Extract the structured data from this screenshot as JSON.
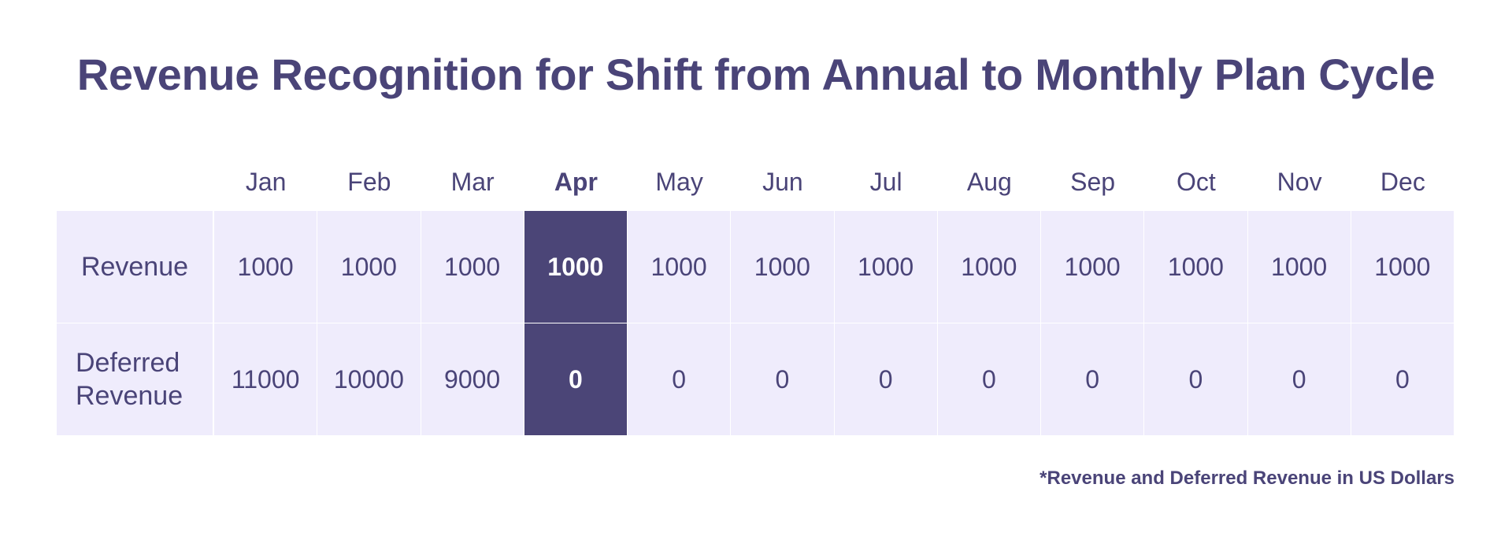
{
  "title": "Revenue Recognition for Shift from Annual to Monthly Plan Cycle",
  "footnote": "*Revenue and Deferred Revenue in US Dollars",
  "colors": {
    "text": "#4a4478",
    "cell_background": "#efecfc",
    "highlight_background": "#4b4577",
    "highlight_text": "#ffffff"
  },
  "chart_data": {
    "type": "table",
    "title": "Revenue Recognition for Shift from Annual to Monthly Plan Cycle",
    "columns": [
      "Jan",
      "Feb",
      "Mar",
      "Apr",
      "May",
      "Jun",
      "Jul",
      "Aug",
      "Sep",
      "Oct",
      "Nov",
      "Dec"
    ],
    "highlighted_column": "Apr",
    "rows": [
      {
        "label": "Revenue",
        "values": [
          "1000",
          "1000",
          "1000",
          "1000",
          "1000",
          "1000",
          "1000",
          "1000",
          "1000",
          "1000",
          "1000",
          "1000"
        ]
      },
      {
        "label": "Deferred Revenue",
        "values": [
          "11000",
          "10000",
          "9000",
          "0",
          "0",
          "0",
          "0",
          "0",
          "0",
          "0",
          "0",
          "0"
        ]
      }
    ],
    "note": "*Revenue and Deferred Revenue in US Dollars"
  }
}
